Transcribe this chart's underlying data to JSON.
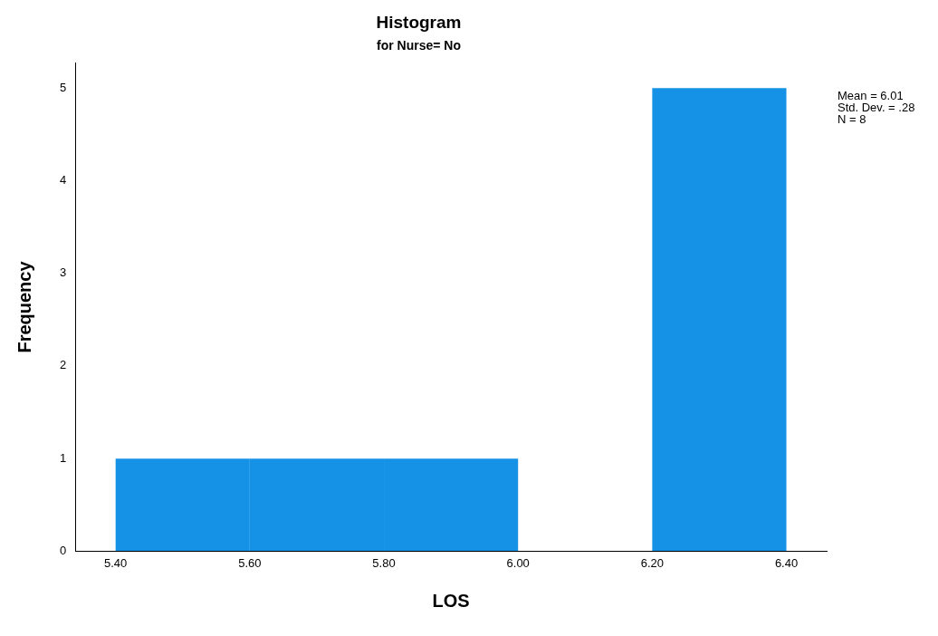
{
  "chart_data": {
    "type": "histogram",
    "title": "Histogram",
    "subtitle": "for Nurse= No",
    "xlabel": "LOS",
    "ylabel": "Frequency",
    "bins": [
      5.4,
      5.6,
      5.8,
      6.0,
      6.2,
      6.4
    ],
    "values": [
      1,
      1,
      1,
      0,
      5
    ],
    "color": "#1591e6",
    "xlim": [
      5.34,
      6.46
    ],
    "xticks": [
      {
        "value": 5.4,
        "label": "5.40"
      },
      {
        "value": 5.6,
        "label": "5.60"
      },
      {
        "value": 5.8,
        "label": "5.80"
      },
      {
        "value": 6.0,
        "label": "6.00"
      },
      {
        "value": 6.2,
        "label": "6.20"
      },
      {
        "value": 6.4,
        "label": "6.40"
      }
    ],
    "ylim": [
      0,
      5.27
    ],
    "yticks": [
      0,
      1,
      2,
      3,
      4,
      5
    ],
    "annotations": [
      "Mean = 6.01",
      "Std. Dev. = .28",
      "N = 8"
    ]
  }
}
